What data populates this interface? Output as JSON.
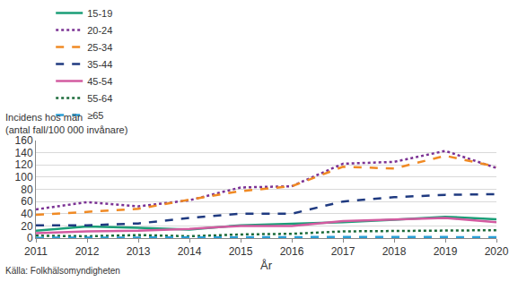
{
  "chart_data": {
    "type": "line",
    "ylabel": [
      "Incidens hos män",
      "(antal fall/100 000 invånare)"
    ],
    "xlabel": "År",
    "source": "Källa: Folkhälsomyndigheten",
    "x": [
      2011,
      2012,
      2013,
      2014,
      2015,
      2016,
      2017,
      2018,
      2019,
      2020
    ],
    "xlim": [
      2011,
      2020
    ],
    "xticks": [
      2011,
      2012,
      2013,
      2014,
      2015,
      2016,
      2017,
      2018,
      2019,
      2020
    ],
    "ylim": [
      0,
      160
    ],
    "yticks": [
      0,
      20,
      40,
      60,
      80,
      100,
      120,
      140,
      160
    ],
    "grid": true,
    "legend": "top",
    "series": [
      {
        "name": "15-19",
        "color": "#1a9e77",
        "line_style": "solid",
        "values": [
          12,
          19,
          17,
          14,
          21,
          23,
          26,
          30,
          35,
          31
        ]
      },
      {
        "name": "20-24",
        "color": "#7b3294",
        "line_style": "dot",
        "values": [
          47,
          59,
          52,
          62,
          83,
          85,
          122,
          125,
          143,
          115
        ]
      },
      {
        "name": "25-34",
        "color": "#f08a24",
        "line_style": "dash",
        "values": [
          38,
          43,
          48,
          63,
          77,
          85,
          117,
          114,
          135,
          117
        ]
      },
      {
        "name": "35-44",
        "color": "#1f3a80",
        "line_style": "dash",
        "values": [
          21,
          21,
          24,
          33,
          40,
          40,
          60,
          67,
          71,
          72
        ]
      },
      {
        "name": "45-54",
        "color": "#d35ba0",
        "line_style": "solid",
        "values": [
          8,
          11,
          12,
          15,
          20,
          20,
          28,
          30,
          33,
          26
        ]
      },
      {
        "name": "55-64",
        "color": "#1b6b3a",
        "line_style": "dot",
        "values": [
          4,
          3,
          5,
          3,
          6,
          7,
          11,
          12,
          13,
          13
        ]
      },
      {
        "name": "≥65",
        "color": "#2a9fd6",
        "line_style": "dash",
        "values": [
          0.5,
          0.5,
          1,
          1,
          1,
          1.5,
          2,
          2,
          2,
          1.5
        ]
      }
    ]
  }
}
